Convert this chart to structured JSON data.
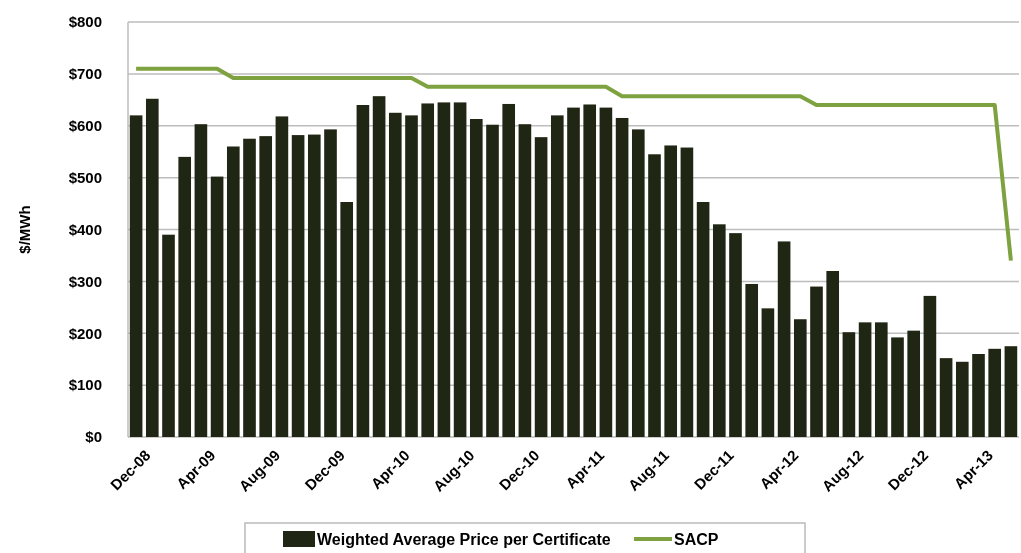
{
  "chart_data": {
    "type": "bar",
    "ylabel": "$/MWh",
    "categories": [
      "Dec-08",
      null,
      null,
      null,
      "Apr-09",
      null,
      null,
      null,
      "Aug-09",
      null,
      null,
      null,
      "Dec-09",
      null,
      null,
      null,
      "Apr-10",
      null,
      null,
      null,
      "Aug-10",
      null,
      null,
      null,
      "Dec-10",
      null,
      null,
      null,
      "Apr-11",
      null,
      null,
      null,
      "Aug-11",
      null,
      null,
      null,
      "Dec-11",
      null,
      null,
      null,
      "Apr-12",
      null,
      null,
      null,
      "Aug-12",
      null,
      null,
      null,
      "Dec-12",
      null,
      null,
      null,
      "Apr-13",
      null,
      null
    ],
    "series": [
      {
        "name": "Weighted Average Price per Certificate",
        "color": "#202614",
        "values": [
          620,
          652,
          390,
          540,
          603,
          502,
          560,
          575,
          580,
          618,
          582,
          583,
          593,
          453,
          640,
          657,
          625,
          620,
          643,
          645,
          645,
          613,
          602,
          642,
          603,
          578,
          620,
          635,
          641,
          635,
          615,
          593,
          545,
          562,
          558,
          453,
          410,
          393,
          295,
          248,
          377,
          227,
          290,
          320,
          202,
          221,
          221,
          192,
          205,
          272,
          152,
          145,
          160,
          170,
          175
        ]
      },
      {
        "name": "SACP",
        "type": "line",
        "color": "#7ea23f",
        "values": [
          710,
          710,
          710,
          710,
          710,
          710,
          692,
          692,
          692,
          692,
          692,
          692,
          692,
          692,
          692,
          692,
          692,
          692,
          675,
          675,
          675,
          675,
          675,
          675,
          675,
          675,
          675,
          675,
          675,
          675,
          657,
          657,
          657,
          657,
          657,
          657,
          657,
          657,
          657,
          657,
          657,
          657,
          640,
          640,
          640,
          640,
          640,
          640,
          640,
          640,
          640,
          640,
          640,
          640,
          340
        ]
      }
    ],
    "ylim": [
      0,
      800
    ],
    "yticks": [
      {
        "value": 0,
        "label": "$0"
      },
      {
        "value": 100,
        "label": "$100"
      },
      {
        "value": 200,
        "label": "$200"
      },
      {
        "value": 300,
        "label": "$300"
      },
      {
        "value": 400,
        "label": "$400"
      },
      {
        "value": 500,
        "label": "$500"
      },
      {
        "value": 600,
        "label": "$600"
      },
      {
        "value": 700,
        "label": "$700"
      },
      {
        "value": 800,
        "label": "$800"
      }
    ],
    "grid": "y",
    "legend": "bottom"
  }
}
